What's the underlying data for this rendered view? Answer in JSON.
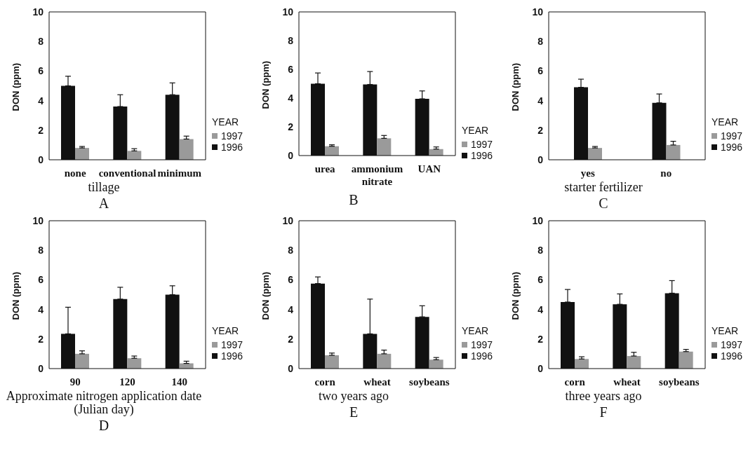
{
  "chart_data": [
    {
      "type": "bar",
      "xlabel": "tillage",
      "ylabel": "DON (ppm)",
      "categories": [
        "none",
        "conventional",
        "minimum"
      ],
      "ylim": [
        0,
        10
      ],
      "yticks": [
        0,
        2,
        4,
        6,
        8,
        10
      ],
      "legend": "right",
      "legend_title": "YEAR",
      "annotations": [
        "A"
      ],
      "series": [
        {
          "name": "1996",
          "color": "#111111",
          "values": [
            5.0,
            3.6,
            4.4
          ],
          "errors": [
            [
              5.0,
              5.65
            ],
            [
              3.6,
              4.4
            ],
            [
              4.4,
              5.2
            ]
          ]
        },
        {
          "name": "1997",
          "color": "#9a9a9a",
          "values": [
            0.8,
            0.6,
            1.4
          ],
          "errors": [
            [
              0.8,
              0.9
            ],
            [
              0.6,
              0.75
            ],
            [
              1.4,
              1.6
            ]
          ]
        }
      ]
    },
    {
      "type": "bar",
      "ylabel": "DON (ppm)",
      "categories": [
        "urea",
        "ammonium nitrate",
        "UAN"
      ],
      "ylim": [
        0,
        10
      ],
      "yticks": [
        0,
        2,
        4,
        6,
        8,
        10
      ],
      "legend": "right",
      "legend_title": "YEAR",
      "annotations": [
        "B"
      ],
      "series": [
        {
          "name": "1996",
          "color": "#111111",
          "values": [
            5.0,
            4.95,
            3.95
          ],
          "errors": [
            [
              5.0,
              5.75
            ],
            [
              4.95,
              5.85
            ],
            [
              3.95,
              4.5
            ]
          ]
        },
        {
          "name": "1997",
          "color": "#9a9a9a",
          "values": [
            0.65,
            1.2,
            0.45
          ],
          "errors": [
            [
              0.65,
              0.75
            ],
            [
              1.2,
              1.4
            ],
            [
              0.45,
              0.6
            ]
          ]
        }
      ]
    },
    {
      "type": "bar",
      "xlabel": "starter fertilizer",
      "ylabel": "DON (ppm)",
      "categories": [
        "yes",
        "no"
      ],
      "ylim": [
        0,
        10
      ],
      "yticks": [
        0,
        2,
        4,
        6,
        8,
        10
      ],
      "legend": "right",
      "legend_title": "YEAR",
      "annotations": [
        "C"
      ],
      "series": [
        {
          "name": "1996",
          "color": "#111111",
          "values": [
            4.9,
            3.85
          ],
          "errors": [
            [
              4.9,
              5.45
            ],
            [
              3.85,
              4.45
            ]
          ]
        },
        {
          "name": "1997",
          "color": "#9a9a9a",
          "values": [
            0.8,
            1.0
          ],
          "errors": [
            [
              0.8,
              0.9
            ],
            [
              1.0,
              1.25
            ]
          ]
        }
      ]
    },
    {
      "type": "bar",
      "xlabel": "Approximate nitrogen application date (Julian day)",
      "ylabel": "DON (ppm)",
      "categories": [
        "90",
        "120",
        "140"
      ],
      "ylim": [
        0,
        10
      ],
      "yticks": [
        0,
        2,
        4,
        6,
        8,
        10
      ],
      "legend": "right",
      "legend_title": "YEAR",
      "annotations": [
        "D"
      ],
      "series": [
        {
          "name": "1996",
          "color": "#111111",
          "values": [
            2.35,
            4.7,
            5.0
          ],
          "errors": [
            [
              2.35,
              4.15
            ],
            [
              4.7,
              5.5
            ],
            [
              5.0,
              5.6
            ]
          ]
        },
        {
          "name": "1997",
          "color": "#9a9a9a",
          "values": [
            1.0,
            0.7,
            0.35
          ],
          "errors": [
            [
              1.0,
              1.2
            ],
            [
              0.7,
              0.85
            ],
            [
              0.35,
              0.5
            ]
          ]
        }
      ]
    },
    {
      "type": "bar",
      "xlabel": "two years ago",
      "ylabel": "DON (ppm)",
      "categories": [
        "corn",
        "wheat",
        "soybeans"
      ],
      "ylim": [
        0,
        10
      ],
      "yticks": [
        0,
        2,
        4,
        6,
        8,
        10
      ],
      "legend": "right",
      "legend_title": "YEAR",
      "annotations": [
        "E"
      ],
      "series": [
        {
          "name": "1996",
          "color": "#111111",
          "values": [
            5.75,
            2.35,
            3.5
          ],
          "errors": [
            [
              5.75,
              6.2
            ],
            [
              2.35,
              4.7
            ],
            [
              3.5,
              4.25
            ]
          ]
        },
        {
          "name": "1997",
          "color": "#9a9a9a",
          "values": [
            0.9,
            1.0,
            0.6
          ],
          "errors": [
            [
              0.9,
              1.05
            ],
            [
              1.0,
              1.25
            ],
            [
              0.6,
              0.75
            ]
          ]
        }
      ]
    },
    {
      "type": "bar",
      "xlabel": "three years ago",
      "ylabel": "DON (ppm)",
      "categories": [
        "corn",
        "wheat",
        "soybeans"
      ],
      "ylim": [
        0,
        10
      ],
      "yticks": [
        0,
        2,
        4,
        6,
        8,
        10
      ],
      "legend": "right",
      "legend_title": "YEAR",
      "annotations": [
        "F"
      ],
      "series": [
        {
          "name": "1996",
          "color": "#111111",
          "values": [
            4.5,
            4.35,
            5.1
          ],
          "errors": [
            [
              4.5,
              5.35
            ],
            [
              4.35,
              5.05
            ],
            [
              5.1,
              5.95
            ]
          ]
        },
        {
          "name": "1997",
          "color": "#9a9a9a",
          "values": [
            0.65,
            0.85,
            1.15
          ],
          "errors": [
            [
              0.65,
              0.8
            ],
            [
              0.85,
              1.1
            ],
            [
              1.15,
              1.3
            ]
          ]
        }
      ]
    }
  ]
}
